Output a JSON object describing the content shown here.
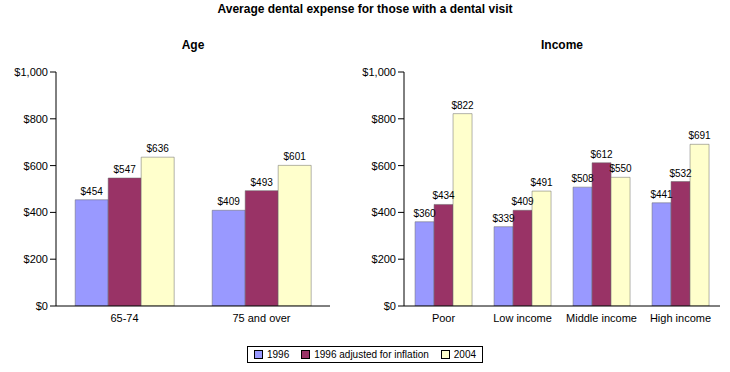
{
  "title": "Average dental expense for those with a dental visit",
  "legend": "bottom",
  "chart_data": [
    {
      "type": "bar",
      "title": "Age",
      "categories": [
        "65-74",
        "75 and over"
      ],
      "series": [
        {
          "name": "1996",
          "color": "#9999ff",
          "values": [
            454,
            409
          ],
          "value_labels": [
            "$454",
            "$409"
          ]
        },
        {
          "name": "1996 adjusted for inflation",
          "color": "#993366",
          "values": [
            547,
            493
          ],
          "value_labels": [
            "$547",
            "$493"
          ]
        },
        {
          "name": "2004",
          "color": "#ffffcc",
          "values": [
            636,
            601
          ],
          "value_labels": [
            "$636",
            "$601"
          ]
        }
      ],
      "ylim": [
        0,
        1000
      ],
      "yticks": [
        {
          "value": 0,
          "label": "$0"
        },
        {
          "value": 200,
          "label": "$200"
        },
        {
          "value": 400,
          "label": "$400"
        },
        {
          "value": 600,
          "label": "$600"
        },
        {
          "value": 800,
          "label": "$800"
        },
        {
          "value": 1000,
          "label": "$1,000"
        }
      ],
      "grid": false,
      "data_labels": true
    },
    {
      "type": "bar",
      "title": "Income",
      "categories": [
        "Poor",
        "Low income",
        "Middle income",
        "High income"
      ],
      "series": [
        {
          "name": "1996",
          "color": "#9999ff",
          "values": [
            360,
            339,
            508,
            441
          ],
          "value_labels": [
            "$360",
            "$339",
            "$508",
            "$441"
          ]
        },
        {
          "name": "1996 adjusted for inflation",
          "color": "#993366",
          "values": [
            434,
            409,
            612,
            532
          ],
          "value_labels": [
            "$434",
            "$409",
            "$612",
            "$532"
          ]
        },
        {
          "name": "2004",
          "color": "#ffffcc",
          "values": [
            822,
            491,
            550,
            691
          ],
          "value_labels": [
            "$822",
            "$491",
            "$550",
            "$691"
          ]
        }
      ],
      "ylim": [
        0,
        1000
      ],
      "yticks": [
        {
          "value": 0,
          "label": "$0"
        },
        {
          "value": 200,
          "label": "$200"
        },
        {
          "value": 400,
          "label": "$400"
        },
        {
          "value": 600,
          "label": "$600"
        },
        {
          "value": 800,
          "label": "$800"
        },
        {
          "value": 1000,
          "label": "$1,000"
        }
      ],
      "grid": false,
      "data_labels": true
    }
  ]
}
